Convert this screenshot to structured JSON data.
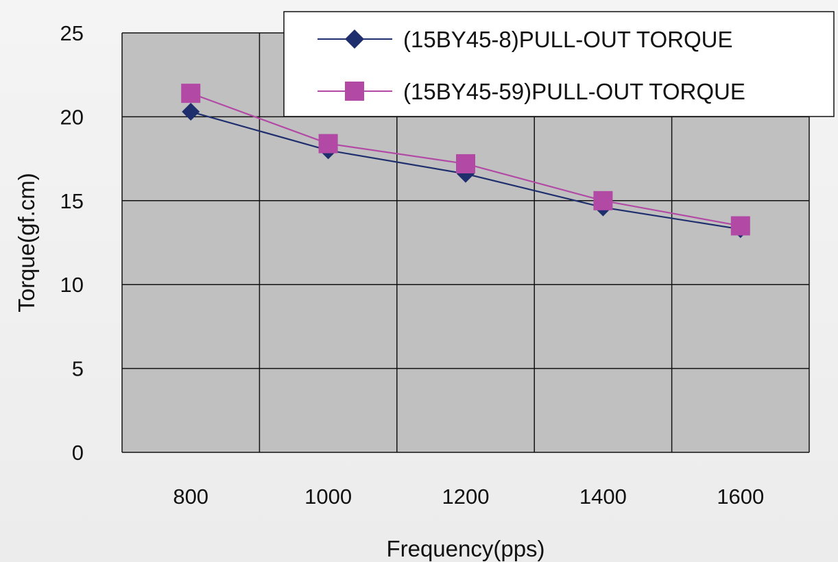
{
  "chart_data": {
    "type": "line",
    "x": [
      800,
      1000,
      1200,
      1400,
      1600
    ],
    "xlabel": "Frequency(pps)",
    "ylabel": "Torque(gf.cm)",
    "ylim": [
      0,
      25
    ],
    "yticks": [
      0,
      5,
      10,
      15,
      20,
      25
    ],
    "xticks": [
      800,
      1000,
      1200,
      1400,
      1600
    ],
    "grid": true,
    "plot_background": "#c0c0c0",
    "legend_position": "top-right",
    "series": [
      {
        "name": "(15BY45-8)PULL-OUT TORQUE",
        "values": [
          20.3,
          18.0,
          16.6,
          14.6,
          13.3
        ],
        "color": "#1f2f6e",
        "marker": "diamond"
      },
      {
        "name": "(15BY45-59)PULL-OUT TORQUE",
        "values": [
          21.4,
          18.4,
          17.2,
          15.0,
          13.5
        ],
        "color": "#b24aa5",
        "marker": "square"
      }
    ]
  }
}
